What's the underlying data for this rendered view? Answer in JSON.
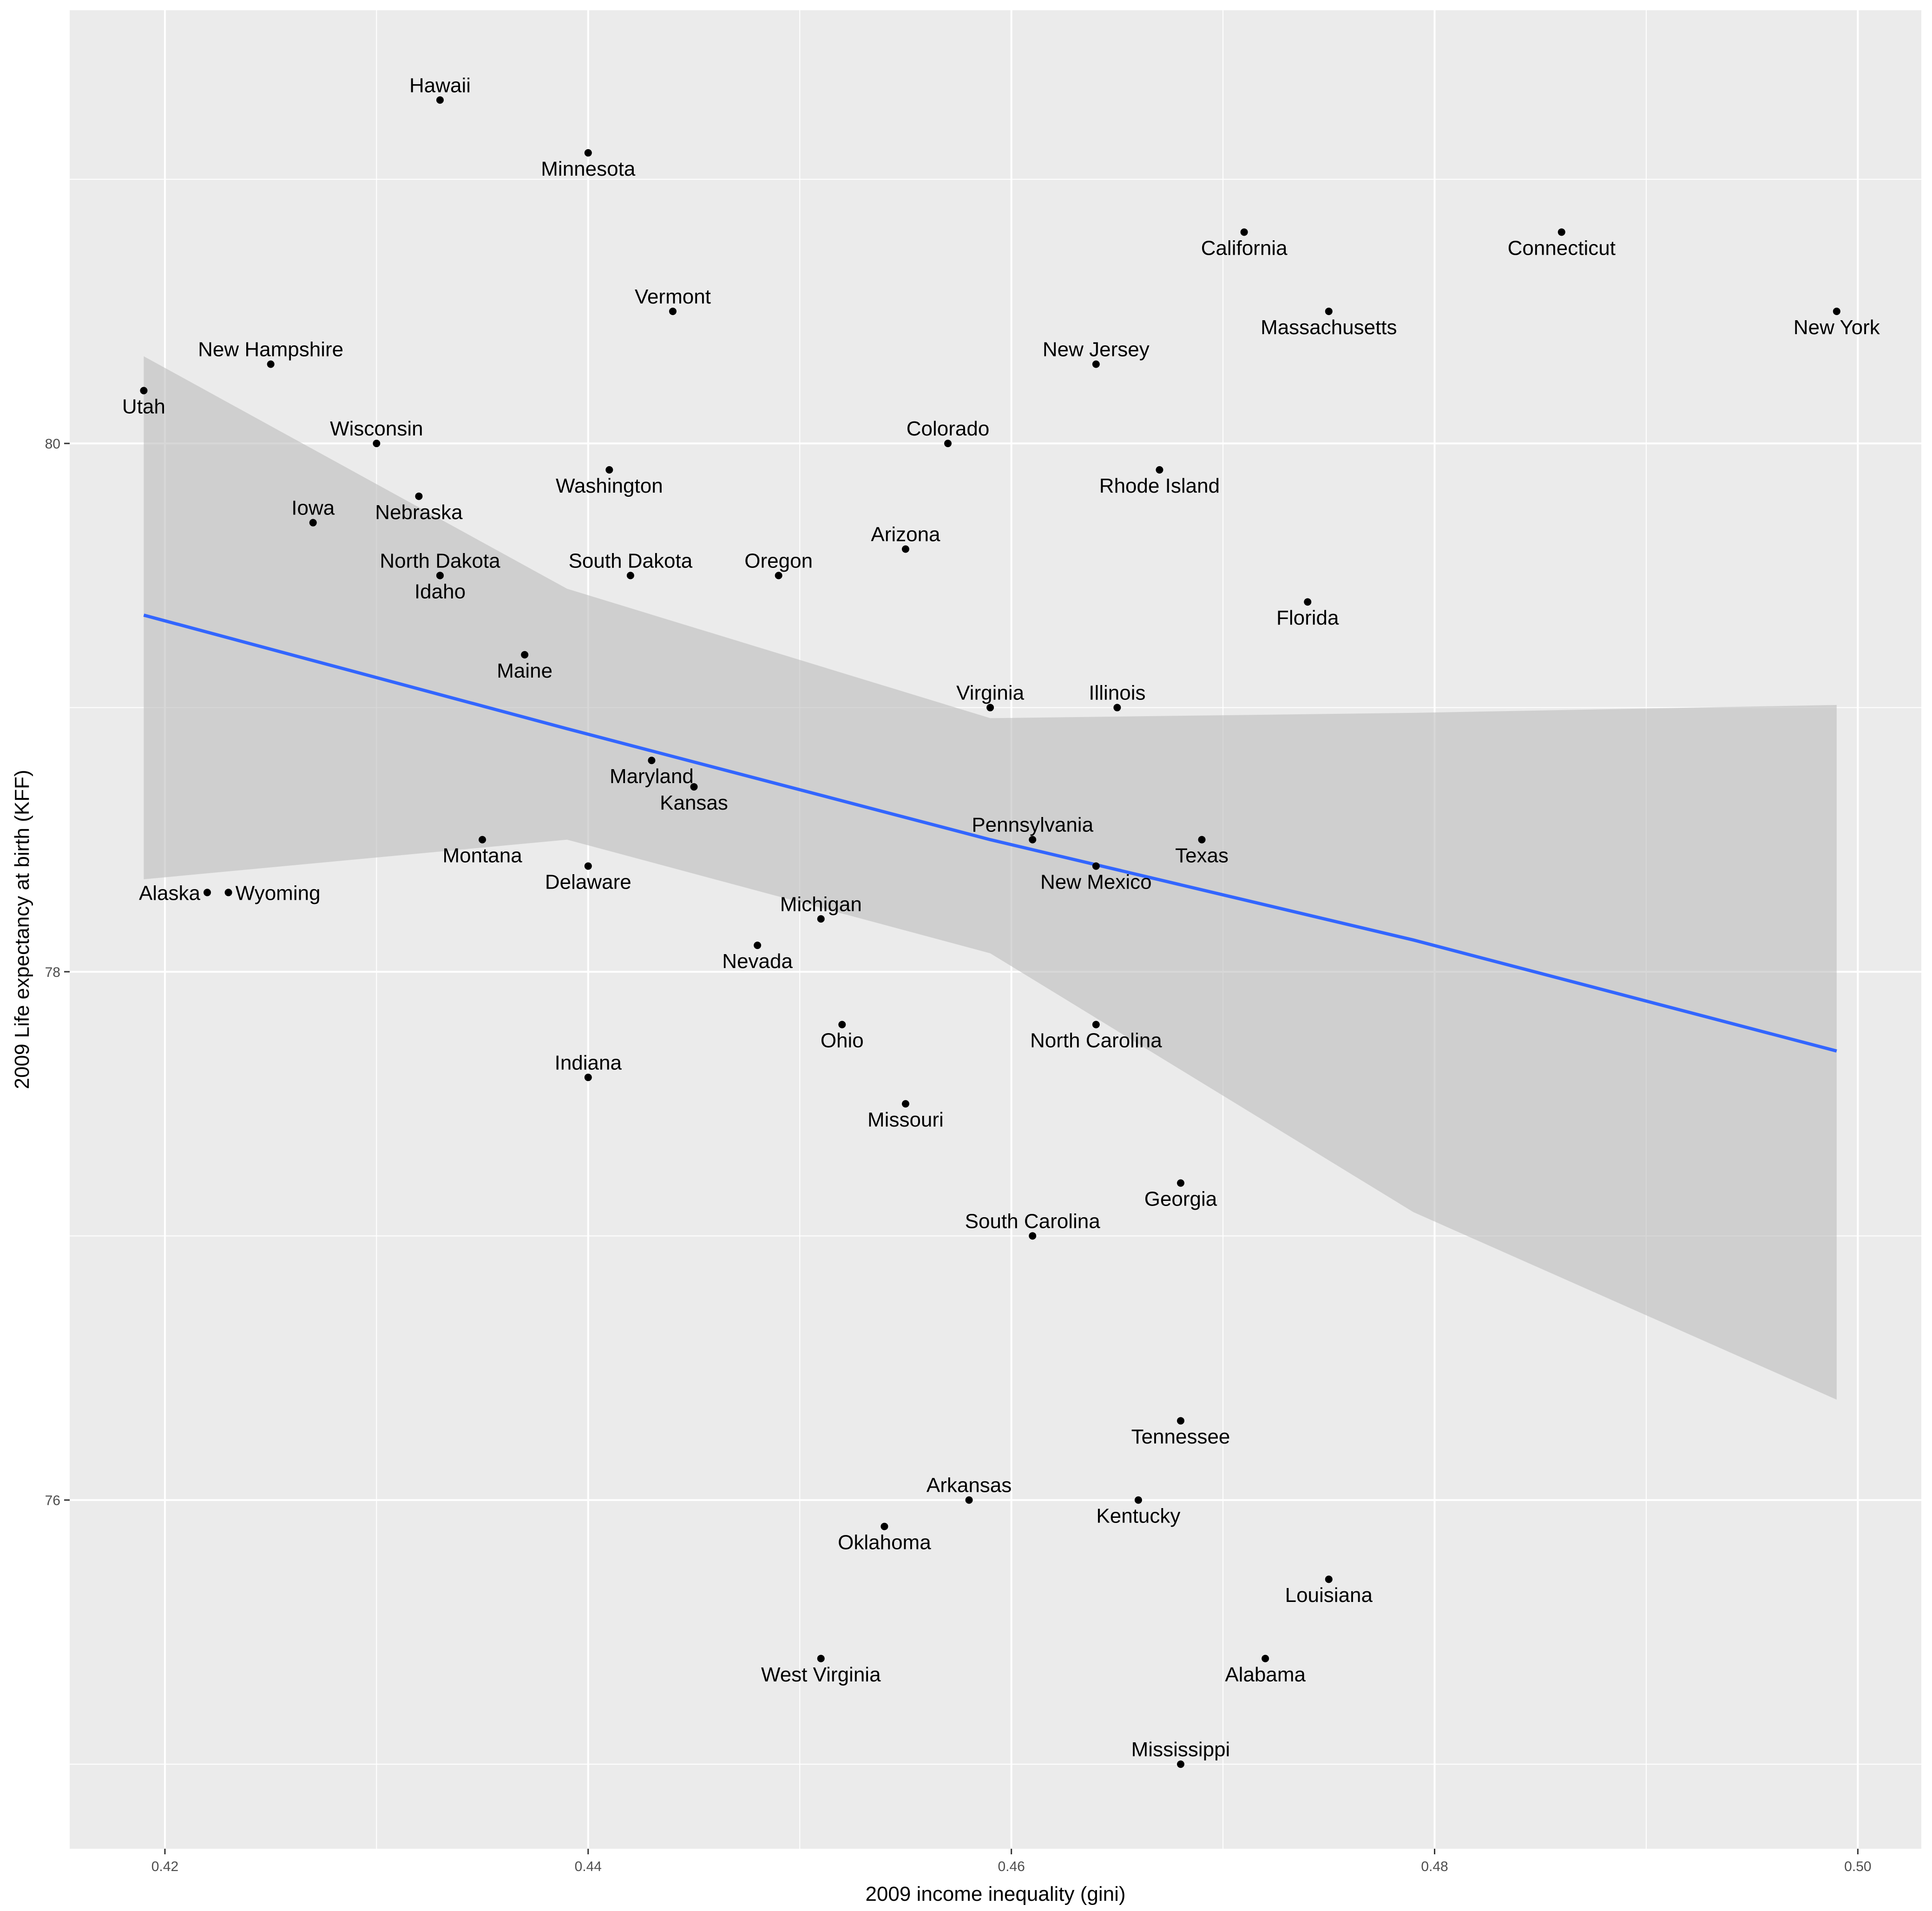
{
  "chart_data": {
    "type": "scatter",
    "title": "",
    "xlabel": "2009 income inequality (gini)",
    "ylabel": "2009 Life expectancy at birth (KFF)",
    "xlim": [
      0.4155,
      0.503
    ],
    "ylim": [
      74.68,
      81.64
    ],
    "x_ticks": [
      {
        "value": 0.42,
        "label": "0.42"
      },
      {
        "value": 0.44,
        "label": "0.44"
      },
      {
        "value": 0.46,
        "label": "0.46"
      },
      {
        "value": 0.48,
        "label": "0.48"
      },
      {
        "value": 0.5,
        "label": "0.50"
      }
    ],
    "y_ticks": [
      {
        "value": 76,
        "label": "76"
      },
      {
        "value": 78,
        "label": "78"
      },
      {
        "value": 80,
        "label": "80"
      }
    ],
    "grid": true,
    "colors": {
      "panel": "#ebebeb",
      "grid": "#ffffff",
      "point": "#000000",
      "fit_line": "#3366ff",
      "ribbon": "#bdbdbd"
    },
    "points": [
      {
        "state": "Hawaii",
        "x": 0.433,
        "y": 81.3,
        "label_pos": "above"
      },
      {
        "state": "Minnesota",
        "x": 0.44,
        "y": 81.1,
        "label_pos": "below"
      },
      {
        "state": "California",
        "x": 0.471,
        "y": 80.8,
        "label_pos": "below"
      },
      {
        "state": "Connecticut",
        "x": 0.486,
        "y": 80.8,
        "label_pos": "below"
      },
      {
        "state": "Vermont",
        "x": 0.444,
        "y": 80.5,
        "label_pos": "above"
      },
      {
        "state": "Massachusetts",
        "x": 0.475,
        "y": 80.5,
        "label_pos": "below"
      },
      {
        "state": "New York",
        "x": 0.499,
        "y": 80.5,
        "label_pos": "below"
      },
      {
        "state": "New Hampshire",
        "x": 0.425,
        "y": 80.3,
        "label_pos": "above"
      },
      {
        "state": "New Jersey",
        "x": 0.464,
        "y": 80.3,
        "label_pos": "above"
      },
      {
        "state": "Utah",
        "x": 0.419,
        "y": 80.2,
        "label_pos": "below"
      },
      {
        "state": "Wisconsin",
        "x": 0.43,
        "y": 80.0,
        "label_pos": "above"
      },
      {
        "state": "Colorado",
        "x": 0.457,
        "y": 80.0,
        "label_pos": "above"
      },
      {
        "state": "Washington",
        "x": 0.441,
        "y": 79.9,
        "label_pos": "below"
      },
      {
        "state": "Rhode Island",
        "x": 0.467,
        "y": 79.9,
        "label_pos": "below"
      },
      {
        "state": "Nebraska",
        "x": 0.432,
        "y": 79.8,
        "label_pos": "below"
      },
      {
        "state": "Iowa",
        "x": 0.427,
        "y": 79.7,
        "label_pos": "above"
      },
      {
        "state": "Arizona",
        "x": 0.455,
        "y": 79.6,
        "label_pos": "above"
      },
      {
        "state": "North Dakota",
        "x": 0.433,
        "y": 79.5,
        "label_pos": "above"
      },
      {
        "state": "Idaho",
        "x": 0.433,
        "y": 79.5,
        "label_pos": "below"
      },
      {
        "state": "South Dakota",
        "x": 0.442,
        "y": 79.5,
        "label_pos": "above"
      },
      {
        "state": "Oregon",
        "x": 0.449,
        "y": 79.5,
        "label_pos": "above"
      },
      {
        "state": "Florida",
        "x": 0.474,
        "y": 79.4,
        "label_pos": "below"
      },
      {
        "state": "Maine",
        "x": 0.437,
        "y": 79.2,
        "label_pos": "below"
      },
      {
        "state": "Virginia",
        "x": 0.459,
        "y": 79.0,
        "label_pos": "above"
      },
      {
        "state": "Illinois",
        "x": 0.465,
        "y": 79.0,
        "label_pos": "above"
      },
      {
        "state": "Maryland",
        "x": 0.443,
        "y": 78.8,
        "label_pos": "below"
      },
      {
        "state": "Kansas",
        "x": 0.445,
        "y": 78.7,
        "label_pos": "below"
      },
      {
        "state": "Montana",
        "x": 0.435,
        "y": 78.5,
        "label_pos": "below"
      },
      {
        "state": "Pennsylvania",
        "x": 0.461,
        "y": 78.5,
        "label_pos": "above"
      },
      {
        "state": "Texas",
        "x": 0.469,
        "y": 78.5,
        "label_pos": "below"
      },
      {
        "state": "Delaware",
        "x": 0.44,
        "y": 78.4,
        "label_pos": "below"
      },
      {
        "state": "New Mexico",
        "x": 0.464,
        "y": 78.4,
        "label_pos": "below"
      },
      {
        "state": "Alaska",
        "x": 0.422,
        "y": 78.3,
        "label_pos": "left"
      },
      {
        "state": "Wyoming",
        "x": 0.423,
        "y": 78.3,
        "label_pos": "right"
      },
      {
        "state": "Michigan",
        "x": 0.451,
        "y": 78.2,
        "label_pos": "above"
      },
      {
        "state": "Nevada",
        "x": 0.448,
        "y": 78.1,
        "label_pos": "below"
      },
      {
        "state": "Ohio",
        "x": 0.452,
        "y": 77.8,
        "label_pos": "below"
      },
      {
        "state": "North Carolina",
        "x": 0.464,
        "y": 77.8,
        "label_pos": "below"
      },
      {
        "state": "Indiana",
        "x": 0.44,
        "y": 77.6,
        "label_pos": "above"
      },
      {
        "state": "Missouri",
        "x": 0.455,
        "y": 77.5,
        "label_pos": "below"
      },
      {
        "state": "Georgia",
        "x": 0.468,
        "y": 77.2,
        "label_pos": "below"
      },
      {
        "state": "South Carolina",
        "x": 0.461,
        "y": 77.0,
        "label_pos": "above"
      },
      {
        "state": "Tennessee",
        "x": 0.468,
        "y": 76.3,
        "label_pos": "below"
      },
      {
        "state": "Arkansas",
        "x": 0.458,
        "y": 76.0,
        "label_pos": "above"
      },
      {
        "state": "Kentucky",
        "x": 0.466,
        "y": 76.0,
        "label_pos": "below"
      },
      {
        "state": "Oklahoma",
        "x": 0.454,
        "y": 75.9,
        "label_pos": "below"
      },
      {
        "state": "Louisiana",
        "x": 0.475,
        "y": 75.7,
        "label_pos": "below"
      },
      {
        "state": "West Virginia",
        "x": 0.451,
        "y": 75.4,
        "label_pos": "below"
      },
      {
        "state": "Alabama",
        "x": 0.472,
        "y": 75.4,
        "label_pos": "below"
      },
      {
        "state": "Mississippi",
        "x": 0.468,
        "y": 75.0,
        "label_pos": "above"
      }
    ],
    "fit": {
      "method": "lm",
      "x": [
        0.419,
        0.439,
        0.459,
        0.479,
        0.499
      ],
      "y": [
        79.35,
        78.92,
        78.5,
        78.12,
        77.7
      ],
      "ymin": [
        78.35,
        78.5,
        78.07,
        77.09,
        76.38
      ],
      "ymax": [
        80.33,
        79.45,
        78.96,
        78.98,
        79.01
      ]
    }
  }
}
